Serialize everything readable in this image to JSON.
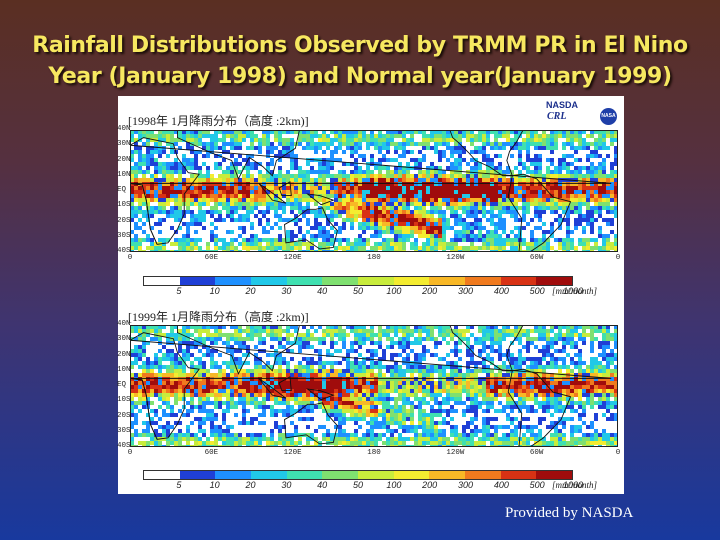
{
  "header": {
    "title_line1": "Rainfall Distributions Observed by TRMM PR in El Nino",
    "title_line2": "Year (January 1998) and Normal year(January 1999)"
  },
  "logos": {
    "nasda": "NASDA",
    "crl": "CRL",
    "nasa": "NASA"
  },
  "credit": "Provided by NASDA",
  "colors": {
    "background_top": "#5a2f22",
    "background_bottom": "#18399e",
    "title": "#f7e860",
    "scale": [
      "#ffffff",
      "#1f3fd6",
      "#1e90ff",
      "#21c8e8",
      "#3fe0b0",
      "#7fe070",
      "#c8ec3c",
      "#f4ec30",
      "#f8b826",
      "#f07a1e",
      "#d83214",
      "#a00c0c"
    ]
  },
  "chart_data": [
    {
      "type": "heatmap",
      "title": "[1998年 1月降雨分布（高度 :2km)]",
      "lat_labels": [
        "40N",
        "30N",
        "20N",
        "10N",
        "EQ",
        "10S",
        "20S",
        "30S",
        "40S"
      ],
      "lon_labels": [
        "0",
        "60E",
        "120E",
        "180",
        "120W",
        "60W",
        "0"
      ],
      "colorbar_ticks": [
        "5",
        "10",
        "20",
        "30",
        "40",
        "50",
        "100",
        "200",
        "300",
        "400",
        "500",
        "1000"
      ],
      "units": "[mm/month]"
    },
    {
      "type": "heatmap",
      "title": "[1999年 1月降雨分布（高度 :2km)]",
      "lat_labels": [
        "40N",
        "30N",
        "20N",
        "10N",
        "EQ",
        "10S",
        "20S",
        "30S",
        "40S"
      ],
      "lon_labels": [
        "0",
        "60E",
        "120E",
        "180",
        "120W",
        "60W",
        "0"
      ],
      "colorbar_ticks": [
        "5",
        "10",
        "20",
        "30",
        "40",
        "50",
        "100",
        "200",
        "300",
        "400",
        "500",
        "1000"
      ],
      "units": "[mm/month]"
    }
  ]
}
